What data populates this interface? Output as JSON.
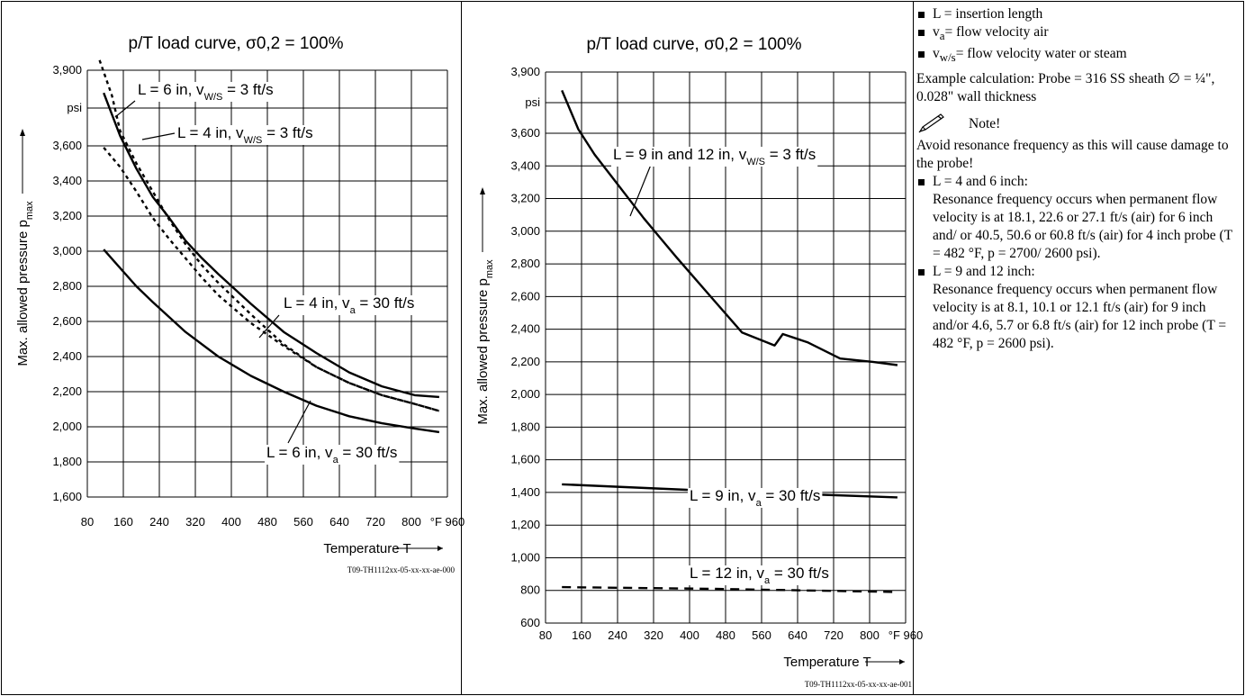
{
  "chart_data": [
    {
      "type": "line",
      "title": "p/T load curve, σ0,2 = 100%",
      "ylabel": "Max. allowed pressure pmax",
      "ylabel_main": "Max. allowed pressure p",
      "ylabel_sub": "max",
      "xlabel": "Temperature T",
      "y_unit": "psi",
      "x_unit": "°F",
      "x_ticks": [
        80,
        160,
        240,
        320,
        400,
        480,
        560,
        640,
        720,
        800,
        960
      ],
      "x_tick_labels": [
        "80",
        "160",
        "240",
        "320",
        "400",
        "480",
        "560",
        "640",
        "720",
        "800",
        "°F 960"
      ],
      "y_ticks": [
        1600,
        1800,
        2000,
        2200,
        2400,
        2600,
        2800,
        3000,
        3200,
        3400,
        3600,
        3900
      ],
      "y_tick_labels": [
        "1,600",
        "1,800",
        "2,000",
        "2,200",
        "2,400",
        "2,600",
        "2,800",
        "3,000",
        "3,200",
        "3,400",
        "3,600",
        "3,900"
      ],
      "xlim": [
        80,
        960
      ],
      "ylim": [
        1600,
        3900
      ],
      "grid": true,
      "figure_code": "T09-TH1112xx-05-xx-xx-ae-000",
      "series": [
        {
          "style": "solid",
          "x": [
            120,
            160,
            200,
            240,
            280,
            320,
            360,
            400,
            480,
            560,
            640,
            720,
            800,
            880,
            940
          ],
          "y": [
            3810,
            3640,
            3470,
            3310,
            3190,
            3060,
            2960,
            2870,
            2700,
            2540,
            2420,
            2310,
            2230,
            2180,
            2170
          ]
        },
        {
          "style": "dotted",
          "x": [
            110,
            140,
            160,
            200,
            240,
            280,
            320,
            360,
            400,
            480,
            560,
            640,
            720,
            800,
            880,
            940
          ],
          "y": [
            3940,
            3800,
            3660,
            3500,
            3340,
            3180,
            3040,
            2920,
            2820,
            2640,
            2470,
            2340,
            2250,
            2180,
            2130,
            2090
          ]
        },
        {
          "style": "dotted",
          "x": [
            120,
            160,
            200,
            240,
            280,
            320,
            360,
            400,
            480,
            560,
            640,
            720,
            800,
            880,
            940
          ],
          "y": [
            3590,
            3480,
            3340,
            3190,
            3070,
            2960,
            2850,
            2750,
            2590,
            2460,
            2340,
            2250,
            2180,
            2130,
            2090
          ]
        },
        {
          "style": "solid",
          "x": [
            120,
            200,
            240,
            320,
            400,
            480,
            560,
            640,
            720,
            800,
            880,
            940
          ],
          "y": [
            3010,
            2800,
            2710,
            2540,
            2400,
            2290,
            2200,
            2120,
            2060,
            2020,
            1990,
            1970
          ]
        }
      ],
      "annotations": [
        {
          "main": "L = 6 in, v",
          "sub": "W/S",
          "rest": " = 3 ft/s"
        },
        {
          "main": "L = 4 in, v",
          "sub": "W/S",
          "rest": " = 3 ft/s"
        },
        {
          "main": "L = 4 in, v",
          "sub": "a",
          "rest": " = 30 ft/s"
        },
        {
          "main": "L = 6 in, v",
          "sub": "a",
          "rest": " = 30 ft/s"
        }
      ]
    },
    {
      "type": "line",
      "title": "p/T load curve, σ0,2 = 100%",
      "ylabel": "Max. allowed pressure pmax",
      "ylabel_main": "Max. allowed pressure p",
      "ylabel_sub": "max",
      "xlabel": "Temperature T",
      "y_unit": "psi",
      "x_unit": "°F",
      "x_ticks": [
        80,
        160,
        240,
        320,
        400,
        480,
        560,
        640,
        720,
        800,
        960
      ],
      "x_tick_labels": [
        "80",
        "160",
        "240",
        "320",
        "400",
        "480",
        "560",
        "640",
        "720",
        "800",
        "°F 960"
      ],
      "y_ticks": [
        600,
        800,
        1000,
        1200,
        1400,
        1600,
        1800,
        2000,
        2200,
        2400,
        2600,
        2800,
        3000,
        3200,
        3400,
        3600,
        3900
      ],
      "y_tick_labels": [
        "600",
        "800",
        "1,000",
        "1,200",
        "1,400",
        "1,600",
        "1,800",
        "2,000",
        "2,200",
        "2,400",
        "2,600",
        "2,800",
        "3,000",
        "3,200",
        "3,400",
        "3,600",
        "3,900"
      ],
      "xlim": [
        80,
        960
      ],
      "ylim": [
        600,
        3900
      ],
      "grid": true,
      "figure_code": "T09-TH1112xx-05-xx-xx-ae-001",
      "series": [
        {
          "style": "solid",
          "x": [
            120,
            160,
            200,
            240,
            280,
            320,
            360,
            400,
            480,
            560,
            640,
            660,
            720,
            800,
            880,
            940
          ],
          "y": [
            3810,
            3620,
            3470,
            3340,
            3210,
            3080,
            2960,
            2840,
            2610,
            2380,
            2300,
            2370,
            2320,
            2220,
            2200,
            2180
          ]
        },
        {
          "style": "solid",
          "x": [
            120,
            480,
            940
          ],
          "y": [
            1450,
            1410,
            1370
          ]
        },
        {
          "style": "dashed",
          "x": [
            120,
            480,
            940
          ],
          "y": [
            820,
            810,
            790
          ]
        }
      ],
      "annotations": [
        {
          "main": "L = 9 in and 12 in, v",
          "sub": "W/S",
          "rest": " = 3 ft/s"
        },
        {
          "main": "L = 9 in, v",
          "sub": "a",
          "rest": " = 30 ft/s"
        },
        {
          "main": "L = 12 in, v",
          "sub": "a",
          "rest": " = 30 ft/s"
        }
      ]
    }
  ],
  "notes": {
    "legend_items": [
      {
        "pre": "L = insertion length",
        "sub": "",
        "post": ""
      },
      {
        "pre": "v",
        "sub": "a",
        "post": "= flow velocity air"
      },
      {
        "pre": "v",
        "sub": "w/s",
        "post": "= flow velocity water or steam"
      }
    ],
    "example": "Example calculation: Probe = 316 SS sheath ∅ = ¼\", 0.028\" wall thickness",
    "note_title": "Note!",
    "note_icon": "pencil-note-icon",
    "warning": "Avoid resonance frequency as this will cause damage to the probe!",
    "resonance_items": [
      {
        "title": "L = 4 and 6 inch:",
        "text": "Resonance frequency occurs when permanent flow velocity is at 18.1, 22.6 or 27.1 ft/s (air) for 6 inch and/ or 40.5, 50.6 or 60.8 ft/s (air) for 4 inch probe (T = 482 °F, p = 2700/ 2600 psi)."
      },
      {
        "title": "L = 9 and 12 inch:",
        "text": "Resonance frequency occurs when permanent flow velocity is at 8.1, 10.1 or 12.1 ft/s (air) for 9 inch and/or 4.6, 5.7 or 6.8 ft/s (air) for 12 inch probe (T = 482 °F, p = 2600 psi)."
      }
    ]
  }
}
